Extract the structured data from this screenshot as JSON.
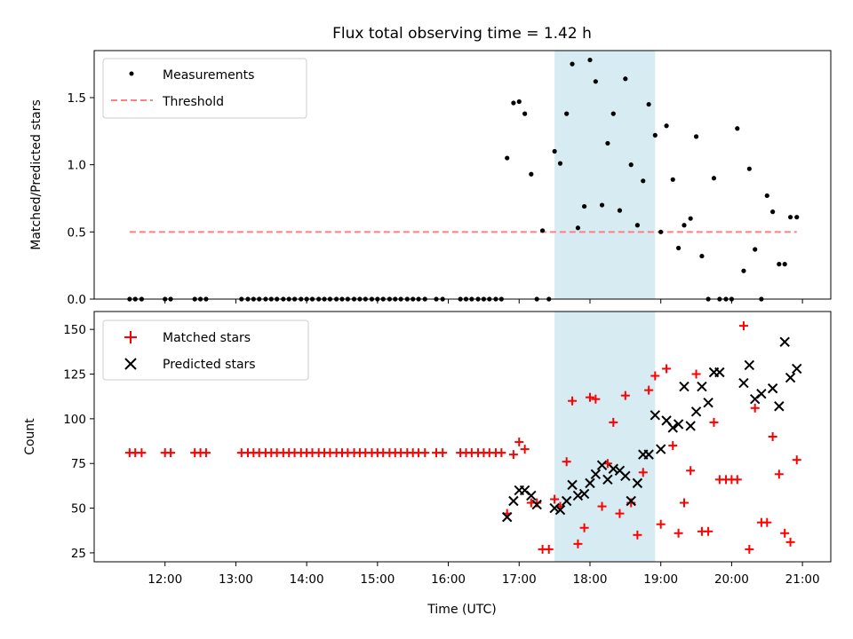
{
  "chart_data": {
    "type": "scatter",
    "title": "Flux total observing time = 1.42 h",
    "shared_x": {
      "label": "Time (UTC)",
      "units": "hours UTC",
      "range": [
        11.0,
        21.4
      ],
      "ticks": [
        {
          "value": 12,
          "label": "12:00"
        },
        {
          "value": 13,
          "label": "13:00"
        },
        {
          "value": 14,
          "label": "14:00"
        },
        {
          "value": 15,
          "label": "15:00"
        },
        {
          "value": 16,
          "label": "16:00"
        },
        {
          "value": 17,
          "label": "17:00"
        },
        {
          "value": 18,
          "label": "18:00"
        },
        {
          "value": 19,
          "label": "19:00"
        },
        {
          "value": 20,
          "label": "20:00"
        },
        {
          "value": 21,
          "label": "21:00"
        }
      ],
      "highlight_span": [
        17.5,
        18.92
      ],
      "highlight_color": "#add8e6"
    },
    "panels": [
      {
        "name": "ratio",
        "ylabel": "Matched/Predicted stars",
        "ylim": [
          0,
          1.85
        ],
        "yticks": [
          {
            "value": 0,
            "label": "0.0"
          },
          {
            "value": 0.5,
            "label": "0.5"
          },
          {
            "value": 1.0,
            "label": "1.0"
          },
          {
            "value": 1.5,
            "label": "1.5"
          }
        ],
        "legend": [
          {
            "label": "Measurements",
            "marker": "dot",
            "color": "#000000"
          },
          {
            "label": "Threshold",
            "marker": "dashed-line",
            "color": "#ff7f7f"
          }
        ],
        "threshold": {
          "value": 0.5,
          "x_range": [
            11.5,
            20.92
          ],
          "color": "#ff7f7f"
        },
        "measurements": {
          "x": [
            11.5,
            11.58,
            11.67,
            12.0,
            12.08,
            12.42,
            12.5,
            12.58,
            13.08,
            13.17,
            13.25,
            13.33,
            13.42,
            13.5,
            13.58,
            13.67,
            13.75,
            13.83,
            13.92,
            14.0,
            14.08,
            14.17,
            14.25,
            14.33,
            14.42,
            14.5,
            14.58,
            14.67,
            14.75,
            14.83,
            14.92,
            15.0,
            15.08,
            15.17,
            15.25,
            15.33,
            15.42,
            15.5,
            15.58,
            15.67,
            15.83,
            15.92,
            16.17,
            16.25,
            16.33,
            16.42,
            16.5,
            16.58,
            16.67,
            16.75,
            16.83,
            16.92,
            17.0,
            17.08,
            17.17,
            17.25,
            17.33,
            17.42,
            17.5,
            17.58,
            17.67,
            17.75,
            17.83,
            17.92,
            18.0,
            18.08,
            18.17,
            18.25,
            18.33,
            18.42,
            18.5,
            18.58,
            18.67,
            18.75,
            18.83,
            18.92,
            19.0,
            19.08,
            19.17,
            19.25,
            19.33,
            19.42,
            19.5,
            19.58,
            19.67,
            19.75,
            19.83,
            19.92,
            20.0,
            20.08,
            20.17,
            20.25,
            20.33,
            20.42,
            20.5,
            20.58,
            20.67,
            20.75,
            20.83,
            20.92
          ],
          "y": [
            0,
            0,
            0,
            0,
            0,
            0,
            0,
            0,
            0,
            0,
            0,
            0,
            0,
            0,
            0,
            0,
            0,
            0,
            0,
            0,
            0,
            0,
            0,
            0,
            0,
            0,
            0,
            0,
            0,
            0,
            0,
            0,
            0,
            0,
            0,
            0,
            0,
            0,
            0,
            0,
            0,
            0,
            0,
            0,
            0,
            0,
            0,
            0,
            0,
            0,
            1.05,
            1.46,
            1.47,
            1.38,
            0.93,
            0,
            0.51,
            0,
            1.1,
            1.01,
            1.38,
            1.75,
            0.53,
            0.69,
            1.78,
            1.62,
            0.7,
            1.16,
            1.38,
            0.66,
            1.64,
            1.0,
            0.55,
            0.88,
            1.45,
            1.22,
            0.5,
            1.29,
            0.89,
            0.38,
            0.55,
            0.6,
            1.21,
            0.32,
            0,
            0.9,
            0,
            0,
            0,
            1.27,
            0.21,
            0.97,
            0.37,
            0,
            0.77,
            0.65,
            0.26,
            0.26,
            0.61,
            0.61
          ]
        }
      },
      {
        "name": "counts",
        "ylabel": "Count",
        "ylim": [
          20,
          160
        ],
        "yticks": [
          {
            "value": 25,
            "label": "25"
          },
          {
            "value": 50,
            "label": "50"
          },
          {
            "value": 75,
            "label": "75"
          },
          {
            "value": 100,
            "label": "100"
          },
          {
            "value": 125,
            "label": "125"
          },
          {
            "value": 150,
            "label": "150"
          }
        ],
        "legend": [
          {
            "label": "Matched stars",
            "marker": "plus",
            "color": "#ff0000"
          },
          {
            "label": "Predicted stars",
            "marker": "x",
            "color": "#000000"
          }
        ],
        "series": [
          {
            "name": "Matched stars",
            "marker": "plus",
            "color": "#ff0000",
            "x": [
              11.5,
              11.58,
              11.67,
              12.0,
              12.08,
              12.42,
              12.5,
              12.58,
              13.08,
              13.17,
              13.25,
              13.33,
              13.42,
              13.5,
              13.58,
              13.67,
              13.75,
              13.83,
              13.92,
              14.0,
              14.08,
              14.17,
              14.25,
              14.33,
              14.42,
              14.5,
              14.58,
              14.67,
              14.75,
              14.83,
              14.92,
              15.0,
              15.08,
              15.17,
              15.25,
              15.33,
              15.42,
              15.5,
              15.58,
              15.67,
              15.83,
              15.92,
              16.17,
              16.25,
              16.33,
              16.42,
              16.5,
              16.58,
              16.67,
              16.75,
              16.83,
              16.92,
              17.0,
              17.08,
              17.17,
              17.25,
              17.33,
              17.42,
              17.5,
              17.58,
              17.67,
              17.75,
              17.83,
              17.92,
              18.0,
              18.08,
              18.17,
              18.25,
              18.33,
              18.42,
              18.5,
              18.58,
              18.67,
              18.75,
              18.83,
              18.92,
              19.0,
              19.08,
              19.17,
              19.25,
              19.33,
              19.42,
              19.5,
              19.58,
              19.67,
              19.75,
              19.83,
              19.92,
              20.0,
              20.08,
              20.17,
              20.25,
              20.33,
              20.42,
              20.5,
              20.58,
              20.67,
              20.75,
              20.83,
              20.92
            ],
            "y": [
              81,
              81,
              81,
              81,
              81,
              81,
              81,
              81,
              81,
              81,
              81,
              81,
              81,
              81,
              81,
              81,
              81,
              81,
              81,
              81,
              81,
              81,
              81,
              81,
              81,
              81,
              81,
              81,
              81,
              81,
              81,
              81,
              81,
              81,
              81,
              81,
              81,
              81,
              81,
              81,
              81,
              81,
              81,
              81,
              81,
              81,
              81,
              81,
              81,
              81,
              47,
              80,
              87,
              83,
              53,
              53,
              27,
              27,
              55,
              51,
              76,
              110,
              30,
              39,
              112,
              111,
              51,
              75,
              98,
              47,
              113,
              53,
              35,
              70,
              116,
              124,
              41,
              128,
              85,
              36,
              53,
              71,
              125,
              37,
              37,
              98,
              66,
              66,
              66,
              66,
              152,
              27,
              106,
              42,
              42,
              90,
              69,
              36,
              31,
              77
            ]
          },
          {
            "name": "Predicted stars",
            "marker": "x",
            "color": "#000000",
            "x": [
              16.83,
              16.92,
              17.0,
              17.08,
              17.17,
              17.25,
              17.5,
              17.58,
              17.67,
              17.75,
              17.83,
              17.92,
              18.0,
              18.08,
              18.17,
              18.25,
              18.33,
              18.42,
              18.5,
              18.58,
              18.67,
              18.75,
              18.83,
              18.92,
              19.0,
              19.08,
              19.17,
              19.25,
              19.33,
              19.42,
              19.5,
              19.58,
              19.67,
              19.75,
              19.83,
              20.17,
              20.25,
              20.33,
              20.42,
              20.58,
              20.67,
              20.75,
              20.83,
              20.92
            ],
            "y": [
              45,
              54,
              60,
              60,
              57,
              52,
              50,
              49,
              54,
              63,
              57,
              58,
              64,
              69,
              74,
              66,
              72,
              71,
              68,
              54,
              64,
              80,
              80,
              102,
              83,
              99,
              95,
              97,
              118,
              96,
              104,
              118,
              109,
              126,
              126,
              120,
              130,
              111,
              114,
              117,
              107,
              143,
              123,
              128
            ]
          }
        ]
      }
    ]
  }
}
